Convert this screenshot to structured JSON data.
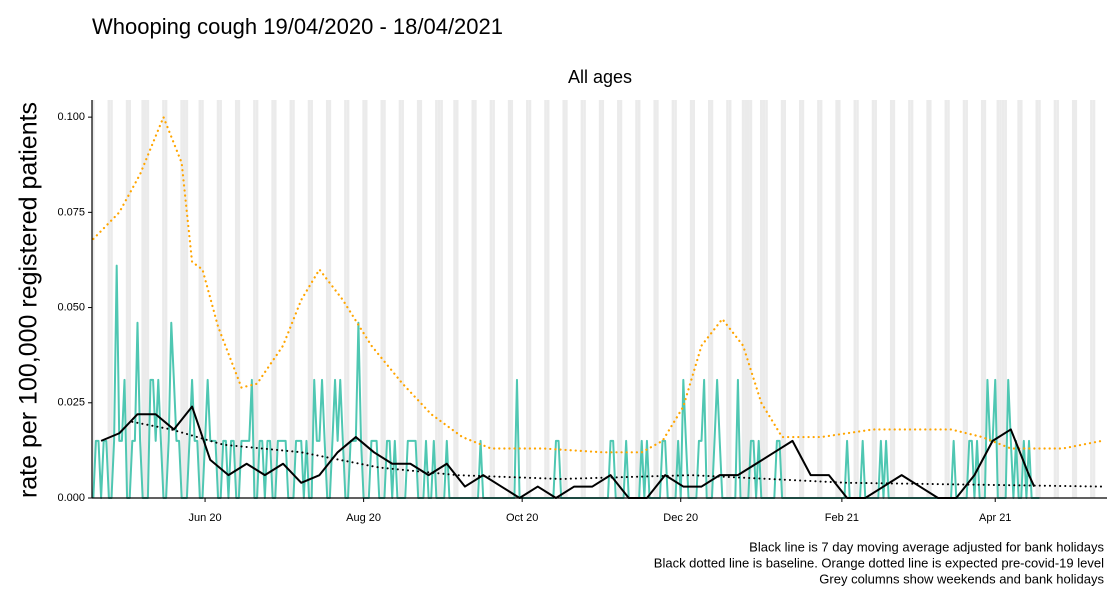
{
  "chart_data": {
    "type": "line",
    "title": "Whooping cough 19/04/2020 - 18/04/2021",
    "subtitle": "All ages",
    "y_label": "rate per 100,000 registered patients",
    "annotations": [
      "Black line is 7 day moving average adjusted for bank holidays",
      "Black dotted line is baseline. Orange dotted line is expected pre-covid-19 level",
      "Grey columns show weekends and bank holidays"
    ],
    "xlim": [
      -0.5,
      390
    ],
    "xticks": [
      {
        "value": 43,
        "label": "Jun 20"
      },
      {
        "value": 104,
        "label": "Aug 20"
      },
      {
        "value": 165,
        "label": "Oct 20"
      },
      {
        "value": 226,
        "label": "Dec 20"
      },
      {
        "value": 288,
        "label": "Feb 21"
      },
      {
        "value": 347,
        "label": "Apr 21"
      }
    ],
    "ylim": [
      0,
      0.1045
    ],
    "yticks": [
      {
        "value": 0,
        "label": "0.000"
      },
      {
        "value": 0.025,
        "label": "0.025"
      },
      {
        "value": 0.05,
        "label": "0.050"
      },
      {
        "value": 0.075,
        "label": "0.075"
      },
      {
        "value": 0.1,
        "label": "0.100"
      }
    ],
    "shade_color": "#ebebeb",
    "shaded_x": [
      0,
      6,
      7,
      13,
      14,
      19,
      20,
      21,
      27,
      28,
      34,
      35,
      36,
      41,
      42,
      48,
      49,
      55,
      56,
      62,
      63,
      69,
      70,
      76,
      77,
      83,
      84,
      90,
      91,
      97,
      98,
      104,
      105,
      111,
      112,
      118,
      119,
      125,
      126,
      132,
      133,
      134,
      139,
      140,
      146,
      147,
      153,
      154,
      160,
      161,
      167,
      168,
      174,
      175,
      181,
      182,
      188,
      189,
      195,
      196,
      202,
      203,
      209,
      210,
      216,
      217,
      223,
      224,
      230,
      231,
      237,
      238,
      244,
      245,
      250,
      251,
      252,
      253,
      257,
      258,
      259,
      265,
      266,
      272,
      273,
      279,
      280,
      286,
      287,
      293,
      294,
      300,
      301,
      307,
      308,
      314,
      315,
      321,
      322,
      328,
      329,
      335,
      336,
      342,
      343,
      348,
      349,
      350,
      351,
      356,
      357,
      363,
      364,
      370,
      371,
      377,
      378,
      384,
      385
    ],
    "series": [
      {
        "color": "#4fc7b2",
        "width": 2,
        "dash": "solid",
        "values": [
          0,
          0.015,
          0.015,
          0,
          0.015,
          0.015,
          0,
          0,
          0.015,
          0.061,
          0.015,
          0.015,
          0.031,
          0,
          0,
          0.015,
          0.015,
          0.046,
          0.015,
          0,
          0,
          0,
          0.031,
          0.031,
          0.015,
          0.031,
          0.015,
          0,
          0,
          0.015,
          0.046,
          0.031,
          0.015,
          0.015,
          0,
          0,
          0,
          0.015,
          0.031,
          0.015,
          0.015,
          0,
          0,
          0.015,
          0.031,
          0.015,
          0.015,
          0.015,
          0,
          0,
          0.015,
          0.015,
          0,
          0.015,
          0.015,
          0,
          0,
          0.015,
          0.015,
          0.015,
          0.015,
          0.031,
          0,
          0,
          0.015,
          0.015,
          0,
          0.015,
          0.015,
          0,
          0,
          0.015,
          0.015,
          0.015,
          0.015,
          0,
          0,
          0,
          0.015,
          0.015,
          0.015,
          0,
          0.015,
          0,
          0,
          0.031,
          0.015,
          0.015,
          0.031,
          0.015,
          0,
          0,
          0.015,
          0.031,
          0.015,
          0.031,
          0.015,
          0,
          0,
          0.015,
          0.015,
          0.015,
          0.046,
          0.015,
          0,
          0,
          0,
          0.015,
          0.015,
          0.015,
          0,
          0,
          0,
          0.015,
          0.015,
          0,
          0.015,
          0,
          0,
          0,
          0,
          0.015,
          0.015,
          0.015,
          0.015,
          0,
          0,
          0,
          0.015,
          0,
          0,
          0.015,
          0,
          0,
          0,
          0,
          0.015,
          0,
          0,
          0,
          0,
          0,
          0,
          0,
          0,
          0,
          0,
          0,
          0,
          0.015,
          0,
          0,
          0,
          0,
          0,
          0,
          0,
          0,
          0,
          0,
          0,
          0,
          0,
          0.031,
          0,
          0,
          0,
          0,
          0,
          0,
          0,
          0,
          0,
          0,
          0,
          0,
          0,
          0,
          0.015,
          0.015,
          0,
          0,
          0,
          0,
          0,
          0,
          0,
          0,
          0,
          0,
          0,
          0,
          0,
          0,
          0,
          0,
          0,
          0,
          0,
          0.015,
          0.015,
          0,
          0,
          0,
          0,
          0.015,
          0,
          0,
          0,
          0,
          0,
          0.015,
          0,
          0.015,
          0,
          0,
          0,
          0,
          0,
          0.015,
          0.015,
          0,
          0,
          0,
          0,
          0.015,
          0,
          0.031,
          0.015,
          0,
          0,
          0,
          0,
          0.015,
          0.015,
          0.031,
          0,
          0,
          0,
          0.015,
          0.031,
          0.015,
          0,
          0,
          0,
          0,
          0,
          0,
          0.031,
          0,
          0,
          0,
          0,
          0.015,
          0.015,
          0,
          0.015,
          0,
          0,
          0,
          0,
          0,
          0,
          0.015,
          0.015,
          0,
          0,
          0,
          0,
          0,
          0,
          0,
          0,
          0,
          0,
          0,
          0,
          0,
          0,
          0,
          0,
          0,
          0,
          0,
          0,
          0,
          0,
          0,
          0,
          0,
          0.015,
          0,
          0,
          0,
          0,
          0,
          0.015,
          0,
          0,
          0,
          0,
          0,
          0,
          0.015,
          0,
          0.015,
          0,
          0,
          0,
          0,
          0,
          0,
          0,
          0,
          0,
          0,
          0,
          0,
          0,
          0,
          0,
          0,
          0,
          0,
          0,
          0,
          0,
          0,
          0,
          0,
          0,
          0.015,
          0,
          0,
          0,
          0,
          0,
          0.015,
          0.015,
          0,
          0.015,
          0,
          0,
          0,
          0.031,
          0.015,
          0.015,
          0.031,
          0,
          0,
          0,
          0,
          0.031,
          0.015,
          0,
          0.015,
          0,
          0,
          0.015,
          0,
          0.015,
          0,
          0,
          0,
          0
        ]
      },
      {
        "color": "#ffa500",
        "width": 2.2,
        "dash": "dotted",
        "x": [
          0,
          10,
          18,
          27,
          34,
          38,
          42,
          48,
          57,
          63,
          73,
          80,
          87,
          96,
          107,
          119,
          130,
          142,
          153,
          173,
          196,
          211,
          219,
          227,
          234,
          242,
          250,
          257,
          265,
          280,
          300,
          330,
          342,
          353,
          373,
          388
        ],
        "values": [
          0.068,
          0.075,
          0.085,
          0.1,
          0.088,
          0.062,
          0.06,
          0.045,
          0.029,
          0.03,
          0.04,
          0.052,
          0.06,
          0.052,
          0.04,
          0.03,
          0.022,
          0.016,
          0.013,
          0.013,
          0.012,
          0.012,
          0.015,
          0.024,
          0.04,
          0.047,
          0.04,
          0.025,
          0.016,
          0.016,
          0.018,
          0.018,
          0.016,
          0.013,
          0.013,
          0.015
        ]
      },
      {
        "color": "#000000",
        "width": 2,
        "dash": "dotted",
        "x": [
          15,
          30,
          50,
          80,
          110,
          140,
          180,
          230,
          290,
          388
        ],
        "values": [
          0.02,
          0.018,
          0.014,
          0.012,
          0.008,
          0.006,
          0.005,
          0.006,
          0.004,
          0.003
        ]
      },
      {
        "color": "#000000",
        "width": 2,
        "dash": "solid",
        "x": [
          3,
          10,
          17,
          24,
          31,
          38,
          45,
          52,
          59,
          66,
          73,
          80,
          87,
          94,
          101,
          108,
          115,
          122,
          129,
          136,
          143,
          150,
          157,
          164,
          171,
          178,
          185,
          192,
          199,
          206,
          213,
          220,
          227,
          234,
          241,
          248,
          255,
          262,
          269,
          276,
          283,
          290,
          297,
          304,
          311,
          318,
          325,
          332,
          339,
          346,
          353,
          360,
          362
        ],
        "values": [
          0.015,
          0.017,
          0.022,
          0.022,
          0.018,
          0.024,
          0.01,
          0.006,
          0.009,
          0.006,
          0.009,
          0.004,
          0.006,
          0.012,
          0.016,
          0.012,
          0.009,
          0.009,
          0.006,
          0.009,
          0.003,
          0.006,
          0.003,
          0,
          0.003,
          0,
          0.003,
          0.003,
          0.006,
          0,
          0,
          0.006,
          0.003,
          0.003,
          0.006,
          0.006,
          0.009,
          0.012,
          0.015,
          0.006,
          0.006,
          0,
          0,
          0.003,
          0.006,
          0.003,
          0,
          0,
          0.006,
          0.015,
          0.018,
          0.006,
          0.003
        ]
      }
    ]
  }
}
